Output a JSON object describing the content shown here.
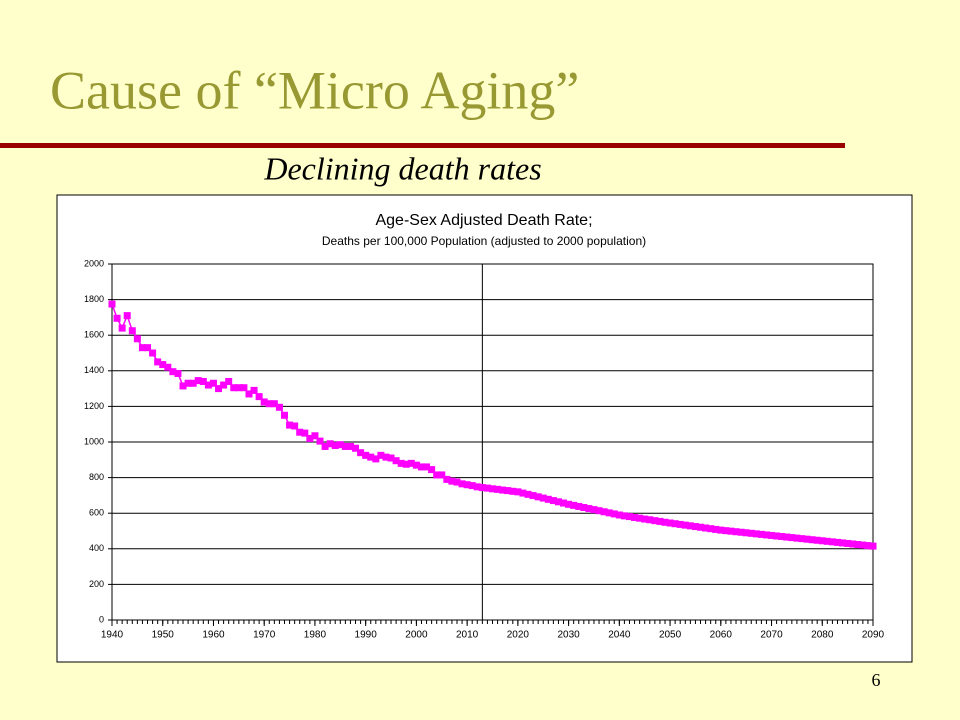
{
  "slide": {
    "title": "Cause of “Micro Aging”",
    "subtitle": "Declining death rates",
    "page_number": "6"
  },
  "chart_data": {
    "type": "line",
    "title": "Age-Sex Adjusted Death Rate;",
    "subtitle": "Deaths per 100,000 Population (adjusted to 2000 population)",
    "x": [
      1940,
      1941,
      1942,
      1943,
      1944,
      1945,
      1946,
      1947,
      1948,
      1949,
      1950,
      1951,
      1952,
      1953,
      1954,
      1955,
      1956,
      1957,
      1958,
      1959,
      1960,
      1961,
      1962,
      1963,
      1964,
      1965,
      1966,
      1967,
      1968,
      1969,
      1970,
      1971,
      1972,
      1973,
      1974,
      1975,
      1976,
      1977,
      1978,
      1979,
      1980,
      1981,
      1982,
      1983,
      1984,
      1985,
      1986,
      1987,
      1988,
      1989,
      1990,
      1991,
      1992,
      1993,
      1994,
      1995,
      1996,
      1997,
      1998,
      1999,
      2000,
      2001,
      2002,
      2003,
      2004,
      2005,
      2006,
      2007,
      2008,
      2009,
      2010,
      2011,
      2012,
      2013,
      2014,
      2015,
      2016,
      2017,
      2018,
      2019,
      2020,
      2021,
      2022,
      2023,
      2024,
      2025,
      2026,
      2027,
      2028,
      2029,
      2030,
      2031,
      2032,
      2033,
      2034,
      2035,
      2036,
      2037,
      2038,
      2039,
      2040,
      2041,
      2042,
      2043,
      2044,
      2045,
      2046,
      2047,
      2048,
      2049,
      2050,
      2051,
      2052,
      2053,
      2054,
      2055,
      2056,
      2057,
      2058,
      2059,
      2060,
      2061,
      2062,
      2063,
      2064,
      2065,
      2066,
      2067,
      2068,
      2069,
      2070,
      2071,
      2072,
      2073,
      2074,
      2075,
      2076,
      2077,
      2078,
      2079,
      2080,
      2081,
      2082,
      2083,
      2084,
      2085,
      2086,
      2087,
      2088,
      2089,
      2090
    ],
    "series": [
      {
        "name": "Death rate",
        "color": "#ff00ff",
        "values": [
          1775,
          1695,
          1640,
          1710,
          1625,
          1580,
          1530,
          1530,
          1500,
          1450,
          1435,
          1420,
          1395,
          1385,
          1315,
          1330,
          1330,
          1345,
          1340,
          1320,
          1330,
          1300,
          1320,
          1340,
          1305,
          1305,
          1305,
          1270,
          1290,
          1255,
          1225,
          1215,
          1215,
          1195,
          1150,
          1095,
          1090,
          1055,
          1050,
          1020,
          1035,
          1005,
          975,
          990,
          980,
          985,
          975,
          975,
          965,
          940,
          925,
          915,
          905,
          925,
          915,
          910,
          895,
          880,
          875,
          880,
          870,
          860,
          860,
          845,
          815,
          815,
          790,
          780,
          775,
          765,
          760,
          755,
          748,
          744,
          741,
          737,
          734,
          730,
          727,
          723,
          720,
          713,
          706,
          699,
          692,
          685,
          678,
          671,
          664,
          657,
          650,
          644,
          638,
          632,
          626,
          620,
          614,
          608,
          602,
          596,
          590,
          585,
          581,
          576,
          572,
          567,
          563,
          558,
          554,
          549,
          545,
          541,
          537,
          533,
          529,
          525,
          521,
          517,
          513,
          509,
          505,
          502,
          499,
          496,
          493,
          490,
          487,
          484,
          481,
          478,
          475,
          472,
          469,
          466,
          463,
          460,
          457,
          454,
          451,
          448,
          445,
          442,
          439,
          436,
          433,
          430,
          427,
          424,
          421,
          418,
          415
        ]
      }
    ],
    "xlim": [
      1940,
      2090
    ],
    "xticks": [
      1940,
      1950,
      1960,
      1970,
      1980,
      1990,
      2000,
      2010,
      2020,
      2030,
      2040,
      2050,
      2060,
      2070,
      2080,
      2090
    ],
    "x_minor_tick_step": 1,
    "ylim": [
      0,
      2000
    ],
    "yticks": [
      0,
      200,
      400,
      600,
      800,
      1000,
      1200,
      1400,
      1600,
      1800,
      2000
    ],
    "vline_x": 2013,
    "grid": true
  }
}
